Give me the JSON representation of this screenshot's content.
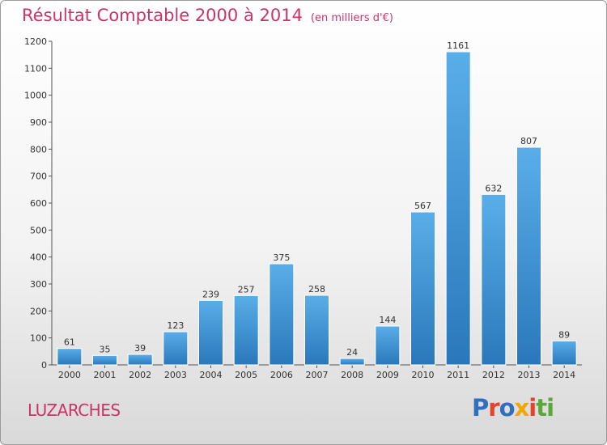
{
  "header": {
    "title": "Résultat Comptable 2000 à 2014",
    "subtitle": "(en milliers d'€)"
  },
  "footer": {
    "city": "LUZARCHES",
    "logo_text": "Proxiti",
    "logo_colors": [
      "#2f6fbf",
      "#e8412c",
      "#2f6fbf",
      "#f2a600",
      "#e8412c",
      "#5aa83c",
      "#5aa83c"
    ]
  },
  "chart_data": {
    "type": "bar",
    "title": "Résultat Comptable 2000 à 2014",
    "subtitle": "(en milliers d'€)",
    "categories": [
      "2000",
      "2001",
      "2002",
      "2003",
      "2004",
      "2005",
      "2006",
      "2007",
      "2008",
      "2009",
      "2010",
      "2011",
      "2012",
      "2013",
      "2014"
    ],
    "values": [
      61,
      35,
      39,
      123,
      239,
      257,
      375,
      258,
      24,
      144,
      567,
      1161,
      632,
      807,
      89
    ],
    "ylim": [
      0,
      1200
    ],
    "yticks": [
      0,
      100,
      200,
      300,
      400,
      500,
      600,
      700,
      800,
      900,
      1000,
      1100,
      1200
    ],
    "bar_color": "#3a8fd6",
    "grid": false,
    "legend": "none"
  }
}
